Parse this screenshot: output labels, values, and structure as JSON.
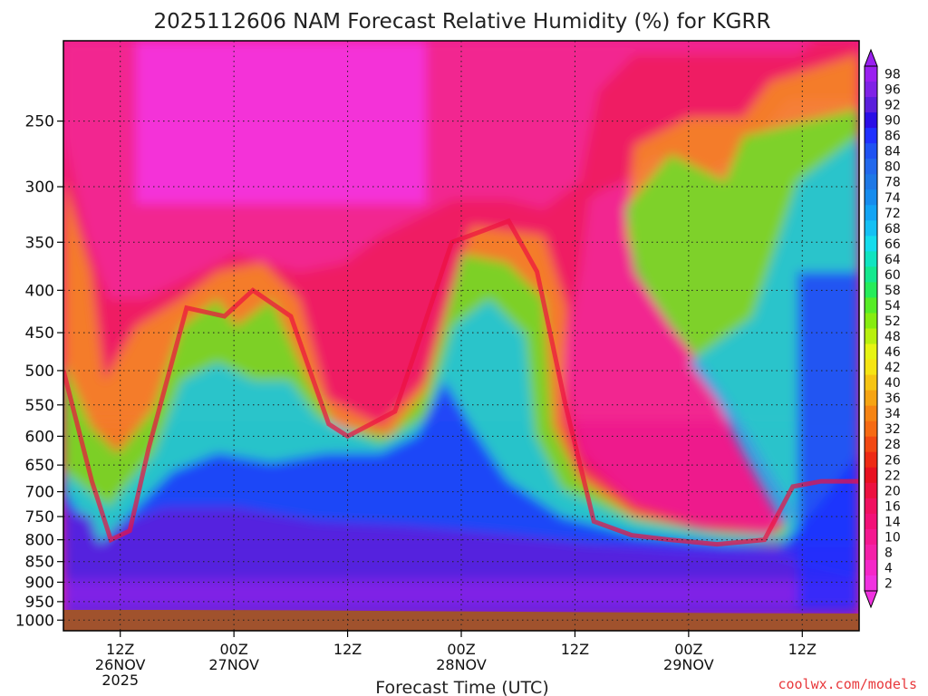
{
  "chart_data": {
    "type": "heatmap",
    "title": "2025112606 NAM Forecast Relative Humidity (%) for KGRR",
    "xlabel": "Forecast Time (UTC)",
    "ylabel": "",
    "credit": "coolwx.com/models",
    "x_units": "hours since 2025-11-26 06Z",
    "x_range": [
      0,
      84
    ],
    "y_units": "hPa",
    "y_range": [
      1030,
      200
    ],
    "y_scale": "log",
    "y_ticks": [
      250,
      300,
      350,
      400,
      450,
      500,
      550,
      600,
      650,
      700,
      750,
      800,
      850,
      900,
      950,
      1000
    ],
    "x_ticks": [
      {
        "hour": 6,
        "lines": [
          "12Z",
          "26NOV",
          "2025"
        ]
      },
      {
        "hour": 18,
        "lines": [
          "00Z",
          "27NOV"
        ]
      },
      {
        "hour": 30,
        "lines": [
          "12Z"
        ]
      },
      {
        "hour": 42,
        "lines": [
          "00Z",
          "28NOV"
        ]
      },
      {
        "hour": 54,
        "lines": [
          "12Z"
        ]
      },
      {
        "hour": 66,
        "lines": [
          "00Z",
          "29NOV"
        ]
      },
      {
        "hour": 78,
        "lines": [
          "12Z"
        ]
      }
    ],
    "grid": true,
    "colorbar": {
      "labels": [
        "98",
        "96",
        "92",
        "90",
        "86",
        "84",
        "80",
        "78",
        "74",
        "72",
        "68",
        "66",
        "64",
        "60",
        "58",
        "54",
        "52",
        "48",
        "46",
        "42",
        "40",
        "36",
        "34",
        "32",
        "28",
        "26",
        "22",
        "20",
        "16",
        "14",
        "10",
        "8",
        "4",
        "2"
      ],
      "colors": [
        "#9a1ff0",
        "#7f22e6",
        "#5a1edc",
        "#2a0ee6",
        "#1f30ff",
        "#1f52f2",
        "#2268ec",
        "#1e78e6",
        "#168cee",
        "#12a4f4",
        "#14c0f4",
        "#14dcec",
        "#10e4c0",
        "#14e88e",
        "#26ec5a",
        "#56ec26",
        "#86ec10",
        "#b8f00e",
        "#e6f412",
        "#f6e412",
        "#f6c412",
        "#f6a412",
        "#f68412",
        "#f66a12",
        "#f24812",
        "#ee2a14",
        "#e81020",
        "#ec1040",
        "#f01060",
        "#f21078",
        "#f41890",
        "#f420a8",
        "#f428c8",
        "#f032e0"
      ]
    },
    "series": [
      {
        "name": "ground_top_hPa",
        "x": [
          0,
          12,
          24,
          36,
          48,
          60,
          72,
          84
        ],
        "values": [
          972,
          972,
          973,
          975,
          977,
          979,
          981,
          982
        ]
      },
      {
        "name": "moist_layer_top_hPa",
        "x": [
          0,
          3,
          5,
          7,
          9,
          13,
          17,
          20,
          24,
          28,
          30,
          35,
          37,
          41,
          44,
          47,
          50,
          53,
          56,
          60,
          64,
          69,
          74,
          77,
          80,
          84
        ],
        "values": [
          500,
          680,
          800,
          780,
          620,
          420,
          430,
          400,
          430,
          580,
          600,
          560,
          480,
          350,
          340,
          330,
          380,
          550,
          760,
          790,
          800,
          810,
          800,
          690,
          680,
          680
        ]
      }
    ],
    "regions": [
      {
        "label": "very moist (86-98)",
        "layer": "900-970 hPa",
        "hours": "0-84"
      },
      {
        "label": "dry (2-16)",
        "layer": "200-480 hPa",
        "hours": "0-40"
      },
      {
        "label": "moist upper layer (60-80)",
        "layer": "250-500 hPa",
        "hours": "72-84"
      }
    ]
  }
}
